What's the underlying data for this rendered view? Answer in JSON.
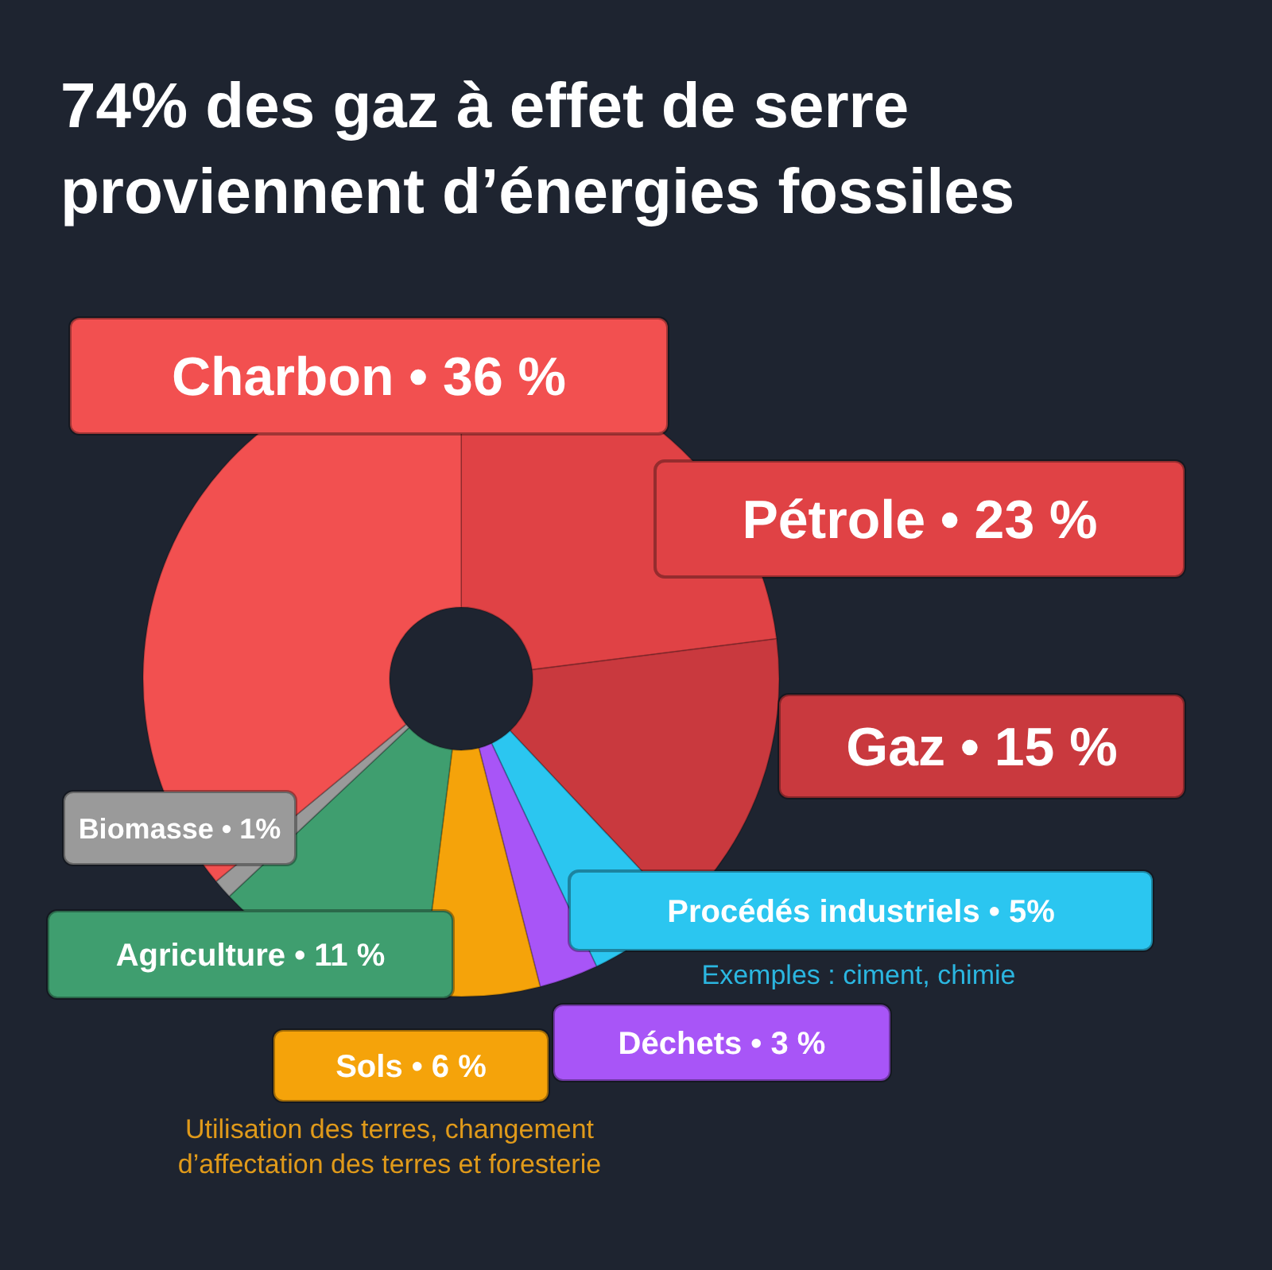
{
  "chart_data": {
    "type": "donut",
    "title": "74% des gaz à effet de serre proviennent d’énergies fossiles",
    "categories": [
      "Pétrole",
      "Gaz",
      "Procédés industriels",
      "Déchets",
      "Sols",
      "Agriculture",
      "Biomasse",
      "Charbon"
    ],
    "values": [
      23,
      15,
      5,
      3,
      6,
      11,
      1,
      36
    ],
    "value_labels": [
      "• 23 %",
      "• 15 %",
      "• 5%",
      "• 3 %",
      "• 6 %",
      "• 11 %",
      "• 1%",
      "• 36 %"
    ],
    "colors": [
      "#e04245",
      "#c9393e",
      "#2bc6f0",
      "#a855f7",
      "#f5a30a",
      "#3f9e6f",
      "#9a9a9a",
      "#f25050"
    ],
    "annotations": [
      "Exemples : ciment, chimie",
      "Utilisation des terres, changement d’affectation des terres et foresterie"
    ],
    "legend": false
  }
}
